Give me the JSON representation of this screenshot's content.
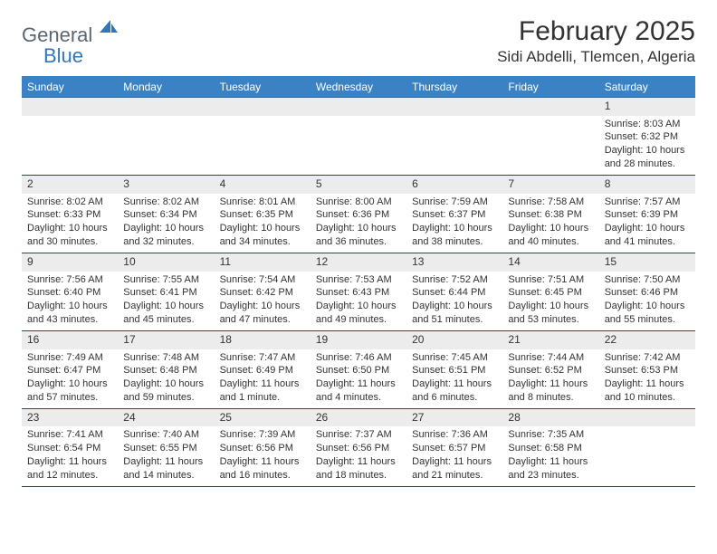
{
  "brand": {
    "part1": "General",
    "part2": "Blue"
  },
  "title": "February 2025",
  "location": "Sidi Abdelli, Tlemcen, Algeria",
  "colors": {
    "header_bg": "#3b82c4",
    "header_text": "#ffffff",
    "day_row_bg": "#ececec",
    "rule": "#234a6e",
    "logo_gray": "#5b6770",
    "logo_blue": "#2f78bd",
    "text": "#333333",
    "page_bg": "#ffffff"
  },
  "weekdays": [
    "Sunday",
    "Monday",
    "Tuesday",
    "Wednesday",
    "Thursday",
    "Friday",
    "Saturday"
  ],
  "weeks": [
    [
      {
        "n": "",
        "lines": []
      },
      {
        "n": "",
        "lines": []
      },
      {
        "n": "",
        "lines": []
      },
      {
        "n": "",
        "lines": []
      },
      {
        "n": "",
        "lines": []
      },
      {
        "n": "",
        "lines": []
      },
      {
        "n": "1",
        "lines": [
          "Sunrise: 8:03 AM",
          "Sunset: 6:32 PM",
          "Daylight: 10 hours and 28 minutes."
        ]
      }
    ],
    [
      {
        "n": "2",
        "lines": [
          "Sunrise: 8:02 AM",
          "Sunset: 6:33 PM",
          "Daylight: 10 hours and 30 minutes."
        ]
      },
      {
        "n": "3",
        "lines": [
          "Sunrise: 8:02 AM",
          "Sunset: 6:34 PM",
          "Daylight: 10 hours and 32 minutes."
        ]
      },
      {
        "n": "4",
        "lines": [
          "Sunrise: 8:01 AM",
          "Sunset: 6:35 PM",
          "Daylight: 10 hours and 34 minutes."
        ]
      },
      {
        "n": "5",
        "lines": [
          "Sunrise: 8:00 AM",
          "Sunset: 6:36 PM",
          "Daylight: 10 hours and 36 minutes."
        ]
      },
      {
        "n": "6",
        "lines": [
          "Sunrise: 7:59 AM",
          "Sunset: 6:37 PM",
          "Daylight: 10 hours and 38 minutes."
        ]
      },
      {
        "n": "7",
        "lines": [
          "Sunrise: 7:58 AM",
          "Sunset: 6:38 PM",
          "Daylight: 10 hours and 40 minutes."
        ]
      },
      {
        "n": "8",
        "lines": [
          "Sunrise: 7:57 AM",
          "Sunset: 6:39 PM",
          "Daylight: 10 hours and 41 minutes."
        ]
      }
    ],
    [
      {
        "n": "9",
        "lines": [
          "Sunrise: 7:56 AM",
          "Sunset: 6:40 PM",
          "Daylight: 10 hours and 43 minutes."
        ]
      },
      {
        "n": "10",
        "lines": [
          "Sunrise: 7:55 AM",
          "Sunset: 6:41 PM",
          "Daylight: 10 hours and 45 minutes."
        ]
      },
      {
        "n": "11",
        "lines": [
          "Sunrise: 7:54 AM",
          "Sunset: 6:42 PM",
          "Daylight: 10 hours and 47 minutes."
        ]
      },
      {
        "n": "12",
        "lines": [
          "Sunrise: 7:53 AM",
          "Sunset: 6:43 PM",
          "Daylight: 10 hours and 49 minutes."
        ]
      },
      {
        "n": "13",
        "lines": [
          "Sunrise: 7:52 AM",
          "Sunset: 6:44 PM",
          "Daylight: 10 hours and 51 minutes."
        ]
      },
      {
        "n": "14",
        "lines": [
          "Sunrise: 7:51 AM",
          "Sunset: 6:45 PM",
          "Daylight: 10 hours and 53 minutes."
        ]
      },
      {
        "n": "15",
        "lines": [
          "Sunrise: 7:50 AM",
          "Sunset: 6:46 PM",
          "Daylight: 10 hours and 55 minutes."
        ]
      }
    ],
    [
      {
        "n": "16",
        "lines": [
          "Sunrise: 7:49 AM",
          "Sunset: 6:47 PM",
          "Daylight: 10 hours and 57 minutes."
        ]
      },
      {
        "n": "17",
        "lines": [
          "Sunrise: 7:48 AM",
          "Sunset: 6:48 PM",
          "Daylight: 10 hours and 59 minutes."
        ]
      },
      {
        "n": "18",
        "lines": [
          "Sunrise: 7:47 AM",
          "Sunset: 6:49 PM",
          "Daylight: 11 hours and 1 minute."
        ]
      },
      {
        "n": "19",
        "lines": [
          "Sunrise: 7:46 AM",
          "Sunset: 6:50 PM",
          "Daylight: 11 hours and 4 minutes."
        ]
      },
      {
        "n": "20",
        "lines": [
          "Sunrise: 7:45 AM",
          "Sunset: 6:51 PM",
          "Daylight: 11 hours and 6 minutes."
        ]
      },
      {
        "n": "21",
        "lines": [
          "Sunrise: 7:44 AM",
          "Sunset: 6:52 PM",
          "Daylight: 11 hours and 8 minutes."
        ]
      },
      {
        "n": "22",
        "lines": [
          "Sunrise: 7:42 AM",
          "Sunset: 6:53 PM",
          "Daylight: 11 hours and 10 minutes."
        ]
      }
    ],
    [
      {
        "n": "23",
        "lines": [
          "Sunrise: 7:41 AM",
          "Sunset: 6:54 PM",
          "Daylight: 11 hours and 12 minutes."
        ]
      },
      {
        "n": "24",
        "lines": [
          "Sunrise: 7:40 AM",
          "Sunset: 6:55 PM",
          "Daylight: 11 hours and 14 minutes."
        ]
      },
      {
        "n": "25",
        "lines": [
          "Sunrise: 7:39 AM",
          "Sunset: 6:56 PM",
          "Daylight: 11 hours and 16 minutes."
        ]
      },
      {
        "n": "26",
        "lines": [
          "Sunrise: 7:37 AM",
          "Sunset: 6:56 PM",
          "Daylight: 11 hours and 18 minutes."
        ]
      },
      {
        "n": "27",
        "lines": [
          "Sunrise: 7:36 AM",
          "Sunset: 6:57 PM",
          "Daylight: 11 hours and 21 minutes."
        ]
      },
      {
        "n": "28",
        "lines": [
          "Sunrise: 7:35 AM",
          "Sunset: 6:58 PM",
          "Daylight: 11 hours and 23 minutes."
        ]
      },
      {
        "n": "",
        "lines": []
      }
    ]
  ]
}
